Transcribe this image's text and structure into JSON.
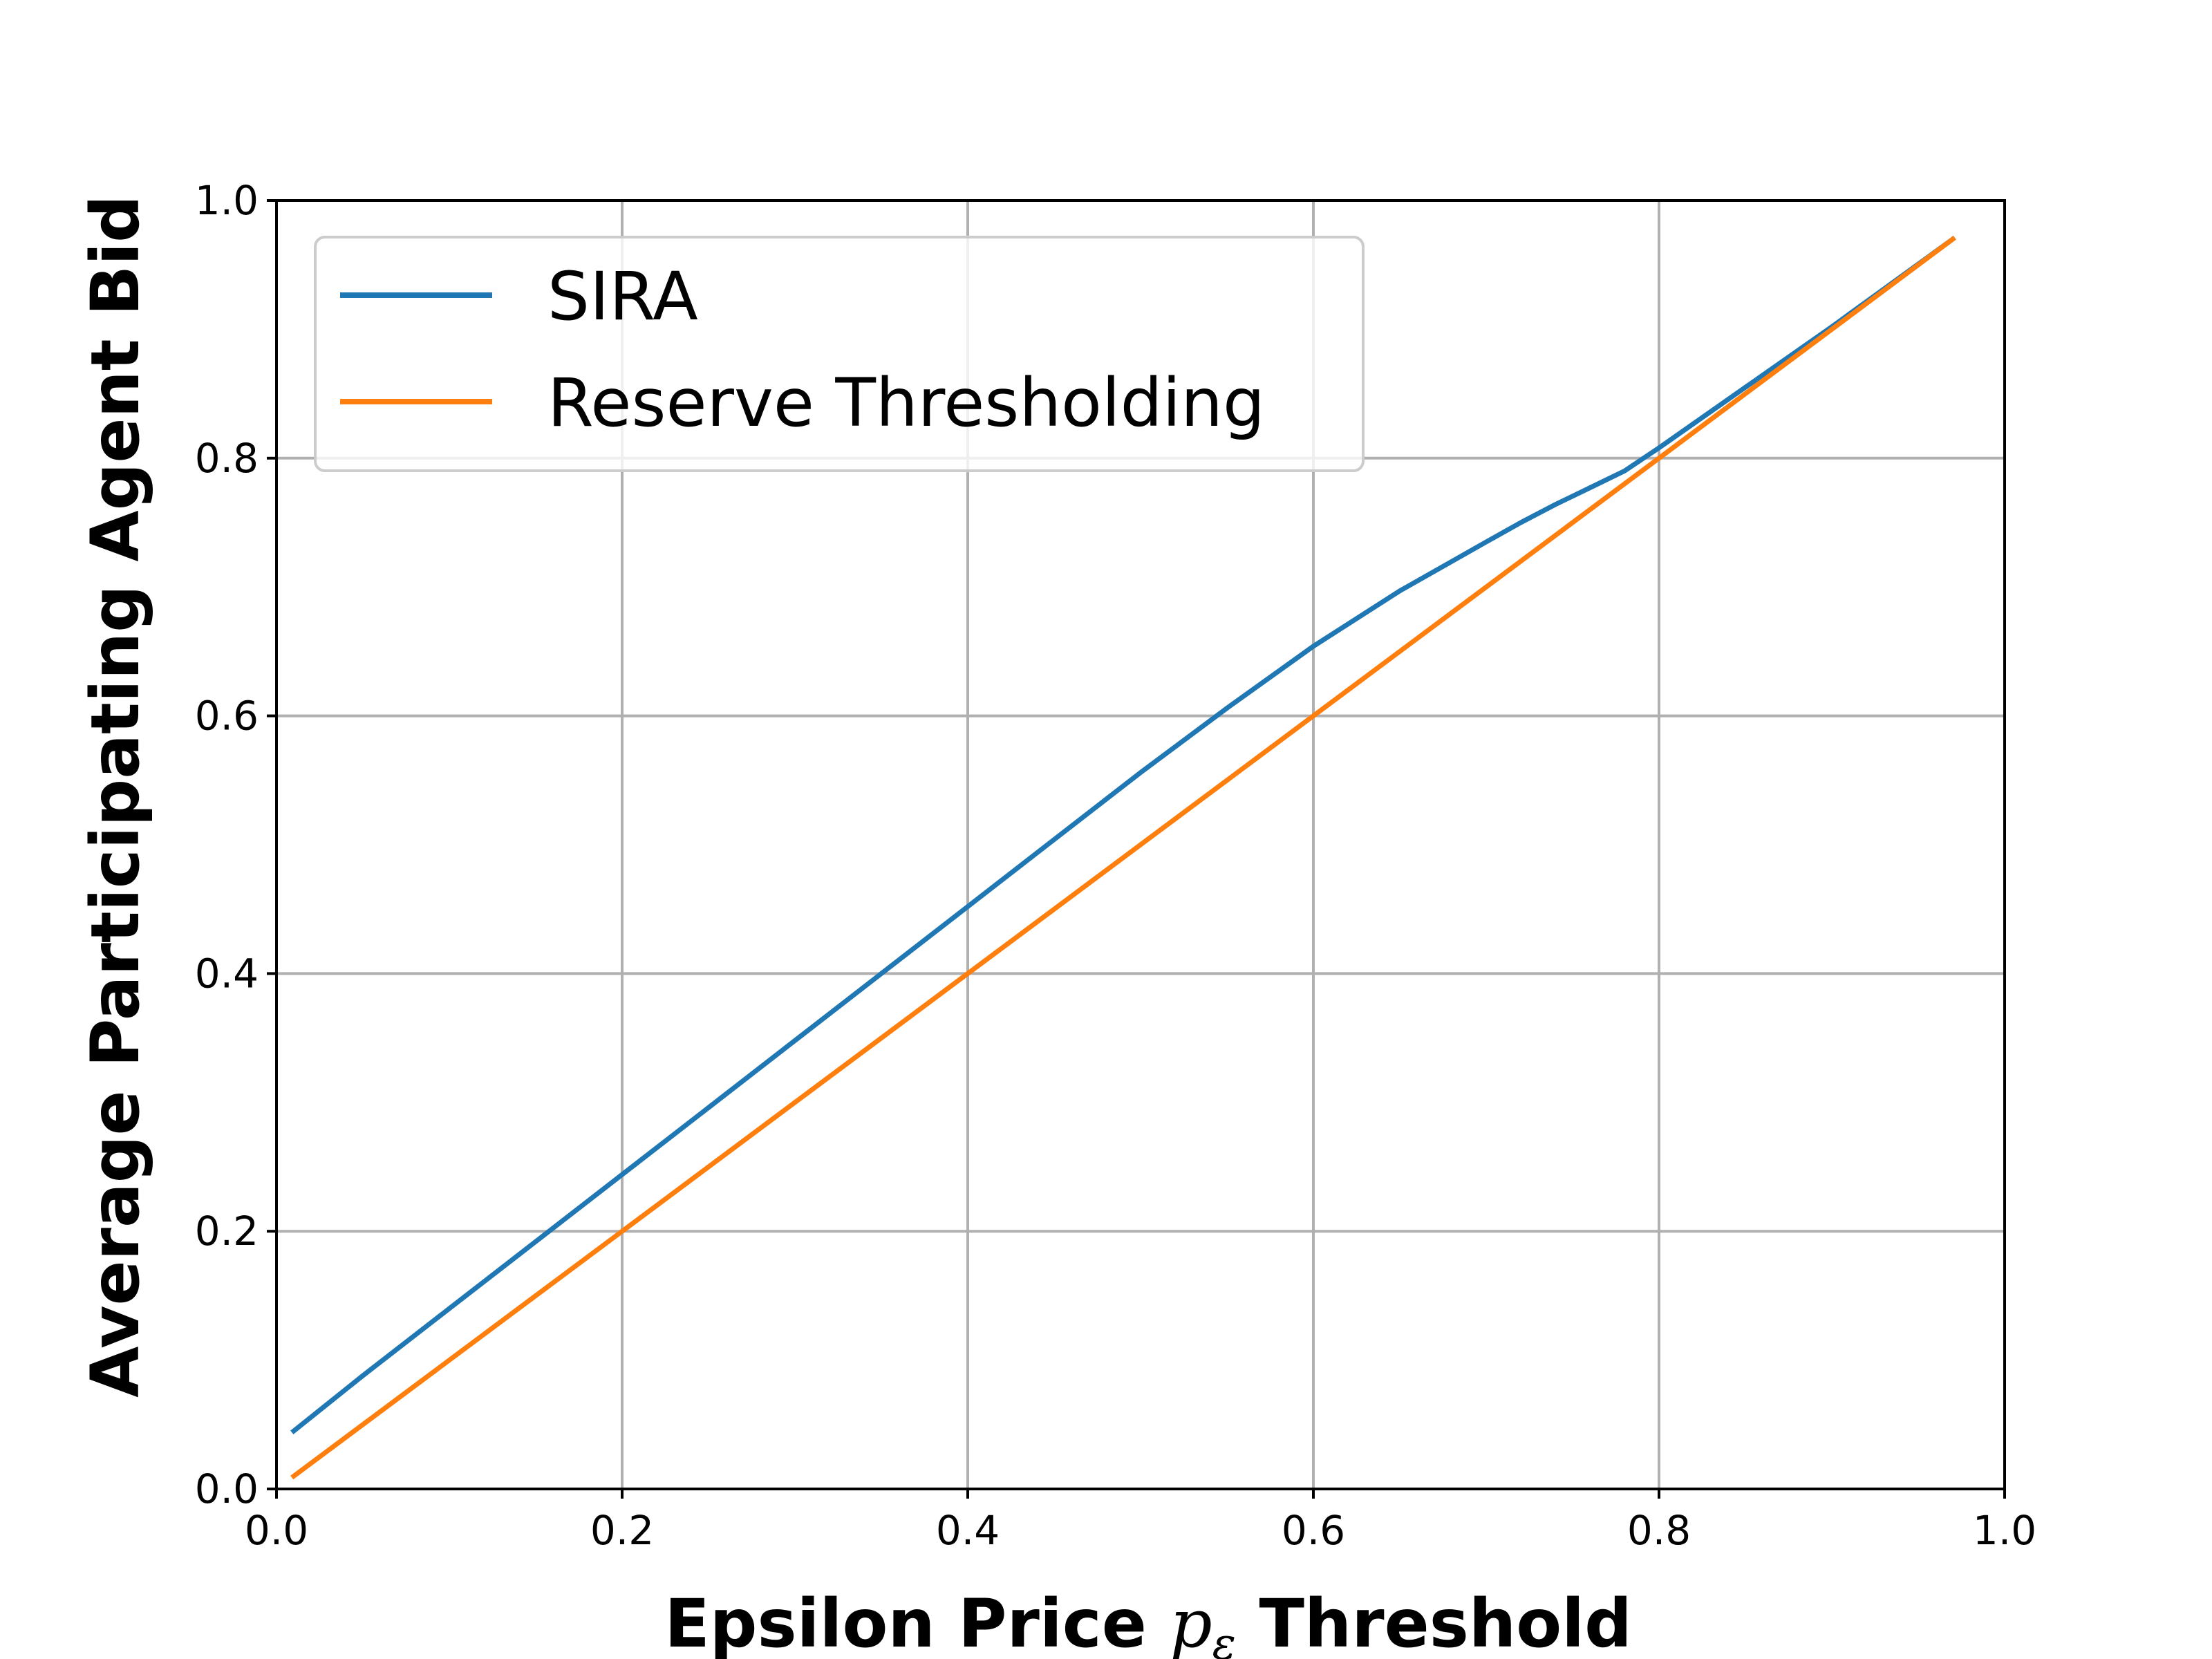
{
  "chart_data": {
    "type": "line",
    "title": "",
    "xlabel_prefix": "Epsilon Price ",
    "xlabel_symbol": "p",
    "xlabel_subscript": "ε",
    "xlabel_suffix": " Threshold",
    "ylabel": "Average Participating Agent Bid",
    "xlim": [
      0.0,
      1.0
    ],
    "ylim": [
      0.0,
      1.0
    ],
    "xticks": [
      "0.0",
      "0.2",
      "0.4",
      "0.6",
      "0.8",
      "1.0"
    ],
    "yticks": [
      "0.0",
      "0.2",
      "0.4",
      "0.6",
      "0.8",
      "1.0"
    ],
    "grid": true,
    "legend_position": "upper-left",
    "series": [
      {
        "name": "SIRA",
        "color": "#1f77b4",
        "x": [
          0.01,
          0.05,
          0.1,
          0.15,
          0.2,
          0.25,
          0.3,
          0.35,
          0.4,
          0.45,
          0.5,
          0.55,
          0.6,
          0.65,
          0.7,
          0.72,
          0.74,
          0.76,
          0.78,
          0.8,
          0.85,
          0.9,
          0.97
        ],
        "y": [
          0.045,
          0.088,
          0.14,
          0.192,
          0.244,
          0.296,
          0.348,
          0.4,
          0.452,
          0.504,
          0.556,
          0.606,
          0.654,
          0.697,
          0.735,
          0.75,
          0.764,
          0.777,
          0.79,
          0.808,
          0.855,
          0.902,
          0.97
        ]
      },
      {
        "name": "Reserve Thresholding",
        "color": "#ff7f0e",
        "x": [
          0.01,
          0.97
        ],
        "y": [
          0.01,
          0.97
        ]
      }
    ]
  }
}
